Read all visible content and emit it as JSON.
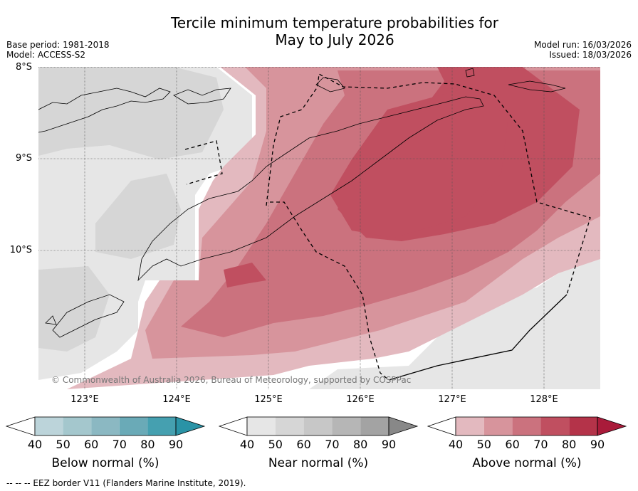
{
  "title_line1": "Tercile minimum temperature probabilities for",
  "title_line2": "May to July 2026",
  "meta_left": {
    "base_period": "Base period: 1981-2018",
    "model": "Model: ACCESS-S2"
  },
  "meta_right": {
    "model_run": "Model run: 16/03/2026",
    "issued": "Issued: 18/03/2026"
  },
  "lat_labels": [
    "8°S",
    "9°S",
    "10°S"
  ],
  "lon_labels": [
    "123°E",
    "124°E",
    "125°E",
    "126°E",
    "127°E",
    "128°E"
  ],
  "copyright": "© Commonwealth of Australia 2026, Bureau of Meteorology, supported by COSPPac",
  "colorbars": [
    {
      "label": "Below normal (%)",
      "ticks": [
        "40",
        "50",
        "60",
        "70",
        "80",
        "90"
      ],
      "colors": [
        "#ffffff",
        "#bcd4da",
        "#a4c7cd",
        "#8bb8c2",
        "#6aaab7",
        "#45a0b0",
        "#2a93a6"
      ]
    },
    {
      "label": "Near normal (%)",
      "ticks": [
        "40",
        "50",
        "60",
        "70",
        "80",
        "90"
      ],
      "colors": [
        "#ffffff",
        "#e6e6e6",
        "#d6d6d6",
        "#c7c7c7",
        "#b6b6b6",
        "#a3a3a3",
        "#888888"
      ]
    },
    {
      "label": "Above normal (%)",
      "ticks": [
        "40",
        "50",
        "60",
        "70",
        "80",
        "90"
      ],
      "colors": [
        "#ffffff",
        "#e3b9bf",
        "#d7949c",
        "#cb727e",
        "#c04f60",
        "#b43349",
        "#a91b3a"
      ]
    }
  ],
  "eez_note": "--  --  -- EEZ border V11 (Flanders Marine Institute, 2019)."
}
